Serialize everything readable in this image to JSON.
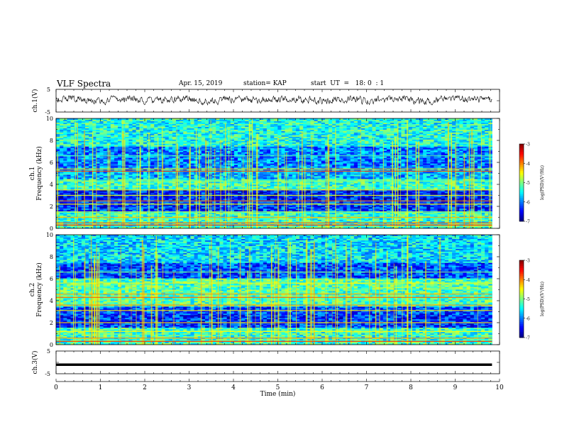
{
  "header": {
    "title": "VLF Spectra",
    "date": "Apr. 15, 2019",
    "station": "station= KAP",
    "start": "start  UT  =   18: 0  : 1"
  },
  "chart_data": [
    {
      "type": "line",
      "panel": "ch1-waveform",
      "ylabel": "ch.1(V)",
      "xlim": [
        0,
        10
      ],
      "ylim": [
        -5,
        5
      ],
      "yticks": [
        "5",
        "-5"
      ],
      "x_end": 9.83,
      "note": "noisy waveform fluctuating roughly between -1.5 and 2 V"
    },
    {
      "type": "heatmap",
      "panel": "ch1-spectrogram",
      "ylabel_line1": "ch.1",
      "ylabel_line2": "Frequency (kHz)",
      "xlim": [
        0,
        10
      ],
      "ylim": [
        0,
        10
      ],
      "yticks": [
        "0",
        "2",
        "4",
        "6",
        "8",
        "10"
      ],
      "x_end": 9.83,
      "colorbar": {
        "label": "log(PSD)(V²/Hz)",
        "min": -7,
        "max": -3,
        "ticks": [
          "-3",
          "-4",
          "-5",
          "-6",
          "-7"
        ]
      },
      "bands": [
        {
          "f": 0.3,
          "level": -3.6
        },
        {
          "f": 0.5,
          "level": -3.8
        },
        {
          "f": 1.0,
          "level": -4.2
        },
        {
          "f": 1.5,
          "level": -4.8
        },
        {
          "f": 2.2,
          "level": -4.5
        },
        {
          "f": 2.5,
          "level": -4.0
        },
        {
          "f": 3.0,
          "level": -4.6
        },
        {
          "f": 3.5,
          "level": -4.4
        },
        {
          "f": 4.3,
          "level": -4.9
        },
        {
          "f": 5.2,
          "level": -3.8
        },
        {
          "f": 5.4,
          "level": -4.2
        },
        {
          "f": 6.6,
          "level": -5.2
        }
      ],
      "background": [
        {
          "f0": 0,
          "f1": 1.5,
          "level": -5.3
        },
        {
          "f0": 1.5,
          "f1": 2.5,
          "level": -6.3
        },
        {
          "f0": 2.5,
          "f1": 3.5,
          "level": -6.4
        },
        {
          "f0": 3.5,
          "f1": 4.5,
          "level": -5.3
        },
        {
          "f0": 4.5,
          "f1": 5.5,
          "level": -5.8
        },
        {
          "f0": 5.5,
          "f1": 7.5,
          "level": -6.0
        },
        {
          "f0": 7.5,
          "f1": 10,
          "level": -5.4
        }
      ]
    },
    {
      "type": "heatmap",
      "panel": "ch2-spectrogram",
      "ylabel_line1": "ch.2",
      "ylabel_line2": "Frequency (kHz)",
      "xlim": [
        0,
        10
      ],
      "ylim": [
        0,
        10
      ],
      "yticks": [
        "0",
        "2",
        "4",
        "6",
        "8",
        "10"
      ],
      "x_end": 9.83,
      "colorbar": {
        "label": "log(PSD)(V²/Hz)",
        "min": -7,
        "max": -3,
        "ticks": [
          "-3",
          "-4",
          "-5",
          "-6",
          "-7"
        ]
      },
      "bands": [
        {
          "f": 0.3,
          "level": -3.7
        },
        {
          "f": 0.6,
          "level": -4.0
        },
        {
          "f": 1.2,
          "level": -4.5
        },
        {
          "f": 2.0,
          "level": -4.3
        },
        {
          "f": 3.1,
          "level": -4.4
        },
        {
          "f": 3.6,
          "level": -4.0
        },
        {
          "f": 4.3,
          "level": -3.9
        },
        {
          "f": 4.6,
          "level": -4.1
        },
        {
          "f": 5.6,
          "level": -4.5
        },
        {
          "f": 6.6,
          "level": -5.0
        }
      ],
      "background": [
        {
          "f0": 0,
          "f1": 1.5,
          "level": -5.3
        },
        {
          "f0": 1.5,
          "f1": 2.8,
          "level": -6.3
        },
        {
          "f0": 2.8,
          "f1": 3.5,
          "level": -6.2
        },
        {
          "f0": 3.5,
          "f1": 6.0,
          "level": -5.2
        },
        {
          "f0": 6.0,
          "f1": 7.5,
          "level": -6.2
        },
        {
          "f0": 7.5,
          "f1": 10,
          "level": -5.6
        }
      ]
    },
    {
      "type": "line",
      "panel": "ch3-waveform",
      "ylabel": "ch.3(V)",
      "xlim": [
        0,
        10
      ],
      "ylim": [
        -5,
        5
      ],
      "yticks": [
        "5",
        "-5"
      ],
      "x_end": 9.83,
      "constant_value": -1,
      "xlabel": "Time (min)",
      "xticks": [
        "0",
        "1",
        "2",
        "3",
        "4",
        "5",
        "6",
        "7",
        "8",
        "9",
        "10"
      ]
    }
  ]
}
